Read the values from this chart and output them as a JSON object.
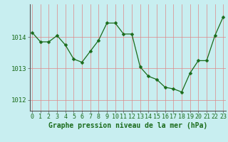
{
  "x": [
    0,
    1,
    2,
    3,
    4,
    5,
    6,
    7,
    8,
    9,
    10,
    11,
    12,
    13,
    14,
    15,
    16,
    17,
    18,
    19,
    20,
    21,
    22,
    23
  ],
  "y": [
    1014.15,
    1013.85,
    1013.85,
    1014.05,
    1013.75,
    1013.3,
    1013.2,
    1013.55,
    1013.9,
    1014.45,
    1014.45,
    1014.1,
    1014.1,
    1013.05,
    1012.75,
    1012.65,
    1012.4,
    1012.35,
    1012.25,
    1012.85,
    1013.25,
    1013.25,
    1014.05,
    1014.65
  ],
  "line_color": "#1a6b1a",
  "marker": "D",
  "markersize": 2.5,
  "bg_color": "#c8eef0",
  "grid_color_v": "#dd8888",
  "grid_color_h": "#dd8888",
  "axis_color": "#555555",
  "ylabel_ticks": [
    1012,
    1013,
    1014
  ],
  "ylim": [
    1011.65,
    1015.05
  ],
  "xlim": [
    -0.3,
    23.3
  ],
  "xlabel": "Graphe pression niveau de la mer (hPa)",
  "xlabel_fontsize": 7,
  "tick_fontsize": 6,
  "label_color": "#1a6b1a",
  "bottom_bar_color": "#2d7a2d"
}
